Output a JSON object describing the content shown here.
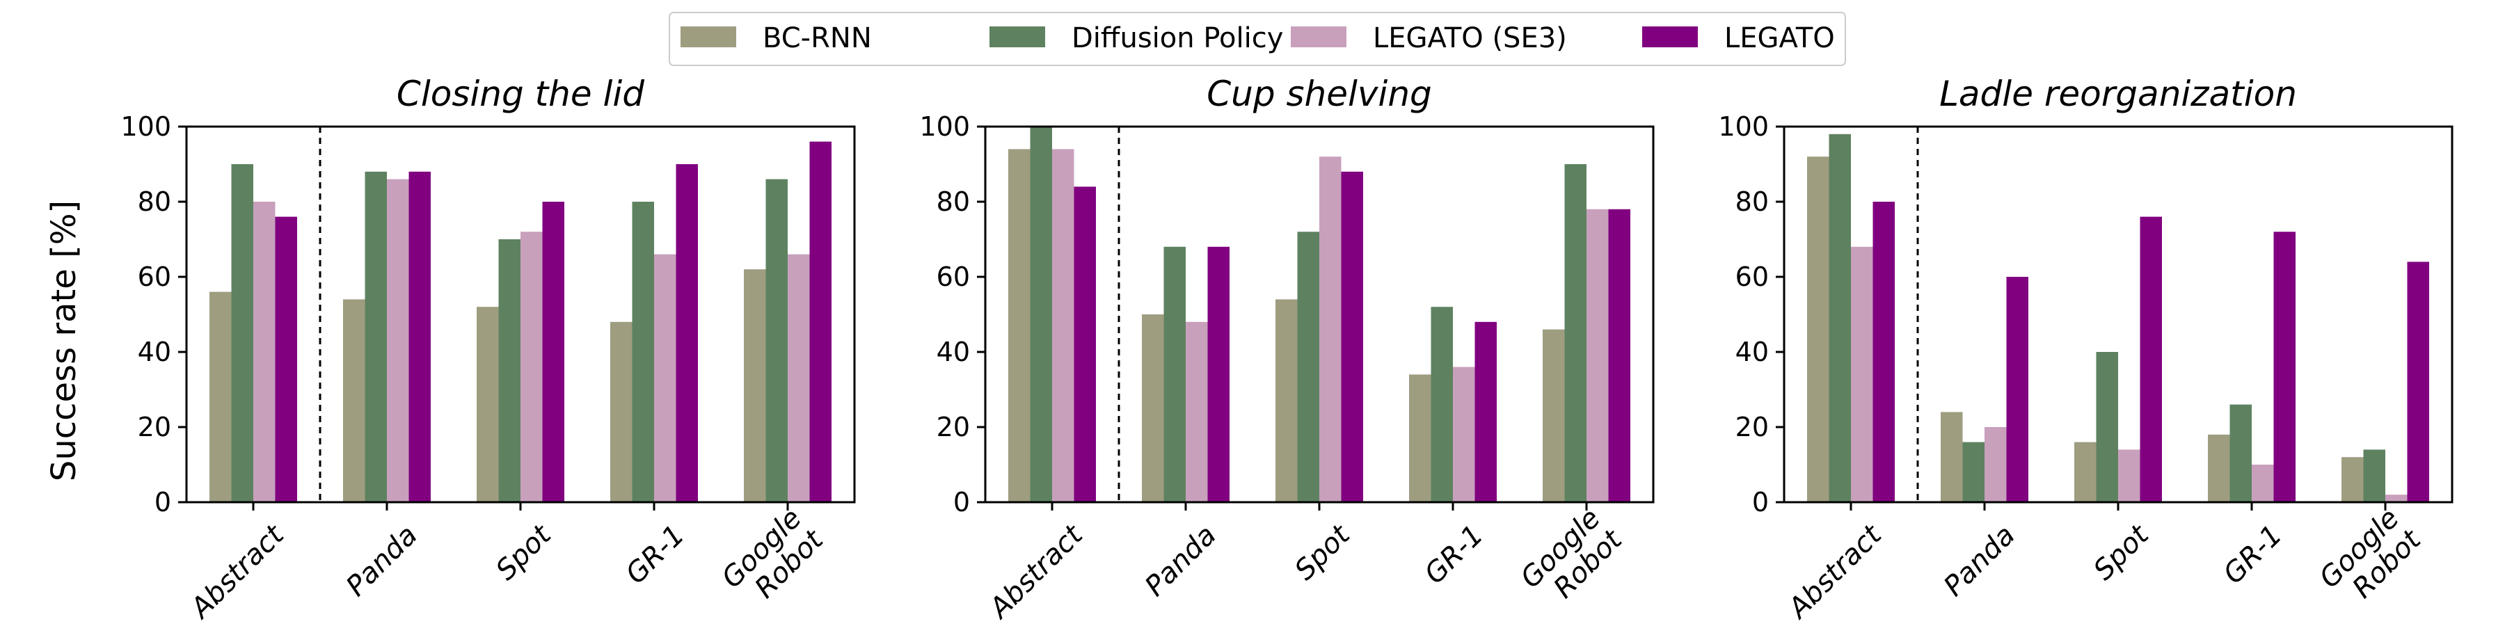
{
  "chart_data": {
    "type": "bar",
    "ylabel": "Success rate [%]",
    "ylim": [
      0,
      100
    ],
    "yticks": [
      "0",
      "20",
      "40",
      "60",
      "80",
      "100"
    ],
    "categories": [
      "Abstract",
      "Panda",
      "Spot",
      "GR-1",
      "Google\nRobot"
    ],
    "series_names": [
      "BC-RNN",
      "Diffusion Policy",
      "LEGATO (SE3)",
      "LEGATO"
    ],
    "colors": [
      "#9e9d80",
      "#5e8260",
      "#c8a0bc",
      "#800080"
    ],
    "legend_position": "top-center",
    "separator_after_category": "Abstract",
    "panels": [
      {
        "title": "Closing the lid",
        "series": [
          {
            "name": "BC-RNN",
            "values": [
              56,
              54,
              52,
              48,
              62
            ]
          },
          {
            "name": "Diffusion Policy",
            "values": [
              90,
              88,
              70,
              80,
              86
            ]
          },
          {
            "name": "LEGATO (SE3)",
            "values": [
              80,
              86,
              72,
              66,
              66
            ]
          },
          {
            "name": "LEGATO",
            "values": [
              76,
              88,
              80,
              90,
              96
            ]
          }
        ]
      },
      {
        "title": "Cup shelving",
        "series": [
          {
            "name": "BC-RNN",
            "values": [
              94,
              50,
              54,
              34,
              46
            ]
          },
          {
            "name": "Diffusion Policy",
            "values": [
              100,
              68,
              72,
              52,
              90
            ]
          },
          {
            "name": "LEGATO (SE3)",
            "values": [
              94,
              48,
              92,
              36,
              78
            ]
          },
          {
            "name": "LEGATO",
            "values": [
              84,
              68,
              88,
              48,
              78
            ]
          }
        ]
      },
      {
        "title": "Ladle reorganization",
        "series": [
          {
            "name": "BC-RNN",
            "values": [
              92,
              24,
              16,
              18,
              12
            ]
          },
          {
            "name": "Diffusion Policy",
            "values": [
              98,
              16,
              40,
              26,
              14
            ]
          },
          {
            "name": "LEGATO (SE3)",
            "values": [
              68,
              20,
              14,
              10,
              2
            ]
          },
          {
            "name": "LEGATO",
            "values": [
              80,
              60,
              76,
              72,
              64
            ]
          }
        ]
      }
    ]
  }
}
